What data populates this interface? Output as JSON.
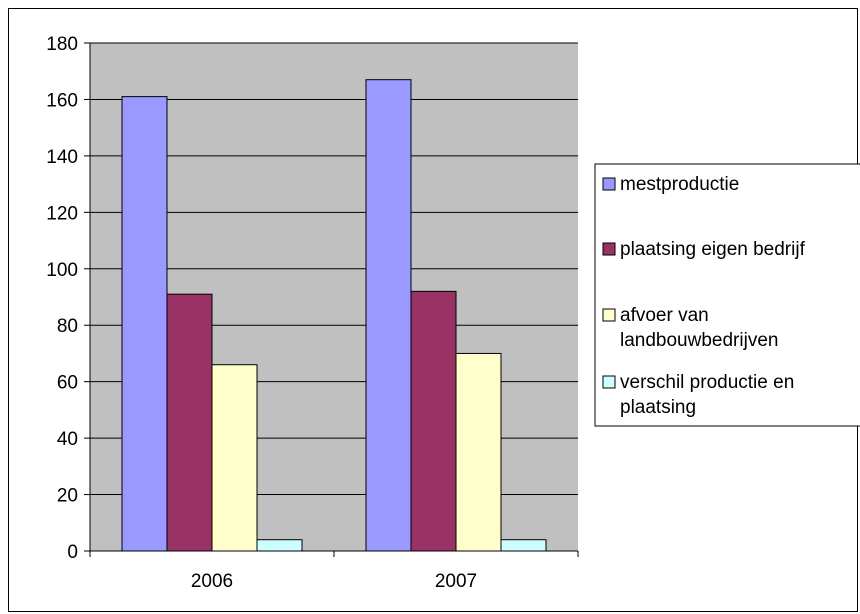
{
  "chart_data": {
    "type": "bar",
    "title": "",
    "xlabel": "",
    "ylabel": "",
    "categories": [
      "2006",
      "2007"
    ],
    "ylim": [
      0,
      180
    ],
    "yticks": [
      "0",
      "20",
      "40",
      "60",
      "80",
      "100",
      "120",
      "140",
      "160",
      "180"
    ],
    "grid": true,
    "legend_position": "right",
    "plot_background": "#c0c0c0",
    "series": [
      {
        "name": "mestproductie",
        "values": [
          161,
          167
        ],
        "color": "#9999ff",
        "legend_lines": [
          "mestproductie"
        ]
      },
      {
        "name": "plaatsing eigen bedrijf",
        "values": [
          91,
          92
        ],
        "color": "#993366",
        "legend_lines": [
          "plaatsing eigen bedrijf"
        ]
      },
      {
        "name": "afvoer van landbouwbedrijven",
        "values": [
          66,
          70
        ],
        "color": "#ffffcc",
        "legend_lines": [
          "afvoer van",
          "landbouwbedrijven"
        ]
      },
      {
        "name": "verschil productie en plaatsing",
        "values": [
          4,
          4
        ],
        "color": "#ccffff",
        "legend_lines": [
          "verschil productie en",
          "plaatsing"
        ]
      }
    ]
  }
}
